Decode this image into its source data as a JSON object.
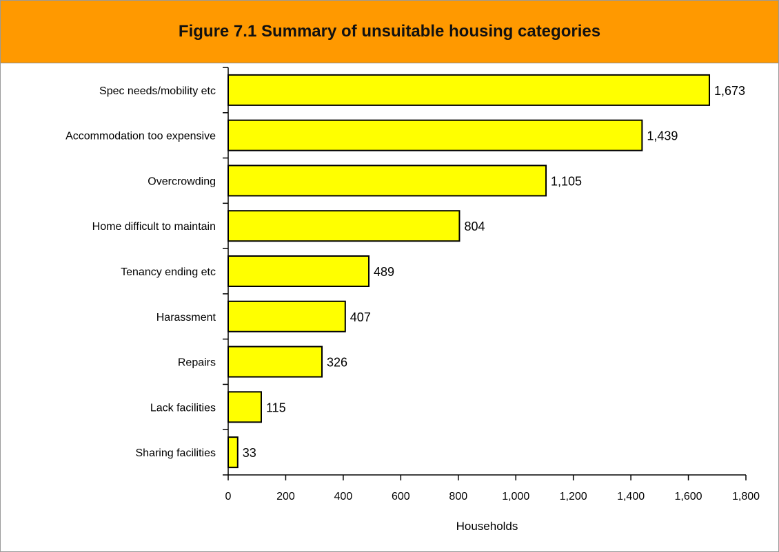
{
  "header": {
    "title": "Figure 7.1 Summary of unsuitable housing categories"
  },
  "colors": {
    "header_bg": "#ff9900",
    "bar_fill": "#ffff00",
    "bar_stroke": "#000000"
  },
  "chart_data": {
    "type": "bar",
    "orientation": "horizontal",
    "title": "Figure 7.1 Summary of unsuitable housing categories",
    "xlabel": "Households",
    "ylabel": "",
    "categories": [
      "Spec needs/mobility etc",
      "Accommodation too expensive",
      "Overcrowding",
      "Home difficult to maintain",
      "Tenancy ending etc",
      "Harassment",
      "Repairs",
      "Lack facilities",
      "Sharing facilities"
    ],
    "values": [
      1673,
      1439,
      1105,
      804,
      489,
      407,
      326,
      115,
      33
    ],
    "value_labels": [
      "1,673",
      "1,439",
      "1,105",
      "804",
      "489",
      "407",
      "326",
      "115",
      "33"
    ],
    "xlim": [
      0,
      1800
    ],
    "xticks": [
      0,
      200,
      400,
      600,
      800,
      1000,
      1200,
      1400,
      1600,
      1800
    ],
    "xtick_labels": [
      "0",
      "200",
      "400",
      "600",
      "800",
      "1,000",
      "1,200",
      "1,400",
      "1,600",
      "1,800"
    ],
    "grid": false,
    "legend": "none"
  }
}
